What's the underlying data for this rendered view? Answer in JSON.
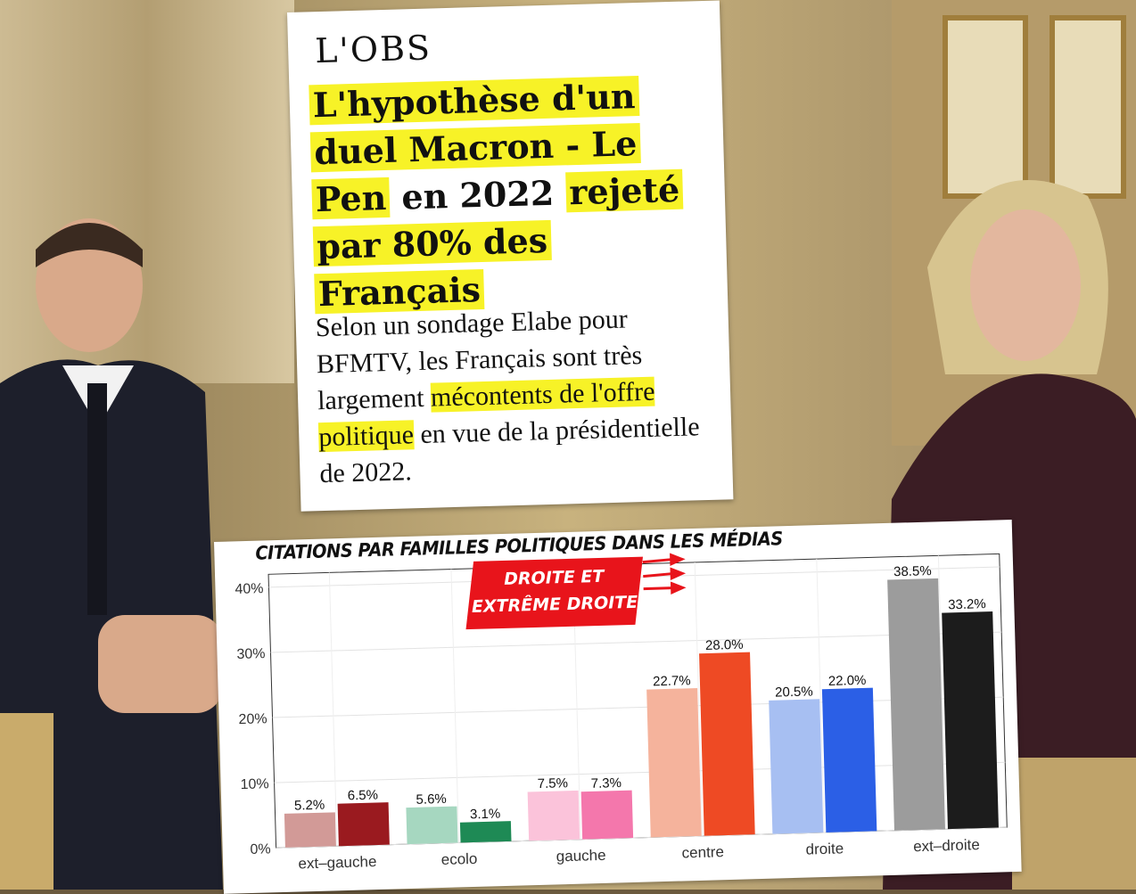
{
  "article": {
    "logo": "L'OBS",
    "headline_parts": {
      "p1": "L'hypothèse d'un duel Macron - Le Pen",
      "p2": " en 2022 ",
      "p3": "rejeté par 80% des Français"
    },
    "lead_parts": {
      "p1": "Selon un sondage Elabe pour BFMTV, les Français sont très largement ",
      "p2": "mécontents de l'offre politique",
      "p3": " en vue de la présidentielle de 2022."
    }
  },
  "ribbon": {
    "line1": "DROITE ET",
    "line2": "EXTRÊME DROITE"
  },
  "chart_data": {
    "type": "bar",
    "title": "CITATIONS PAR FAMILLES POLITIQUES DANS LES MÉDIAS",
    "categories": [
      "ext–gauche",
      "ecolo",
      "gauche",
      "centre",
      "droite",
      "ext–droite"
    ],
    "series": [
      {
        "values": [
          5.2,
          5.6,
          7.5,
          22.7,
          20.5,
          38.5
        ],
        "colors": [
          "#d29a97",
          "#a6d7c0",
          "#fbc3da",
          "#f5b39c",
          "#a7bff2",
          "#9c9c9c"
        ]
      },
      {
        "values": [
          6.5,
          3.1,
          7.3,
          28.0,
          22.0,
          33.2
        ],
        "colors": [
          "#9a1a1f",
          "#1e8a55",
          "#f477ac",
          "#ee4a24",
          "#2b5fe6",
          "#1c1c1c"
        ]
      }
    ],
    "yticks": [
      "0%",
      "10%",
      "20%",
      "30%",
      "40%"
    ],
    "ylim": [
      0,
      42
    ],
    "grid": true,
    "value_suffix": "%"
  }
}
